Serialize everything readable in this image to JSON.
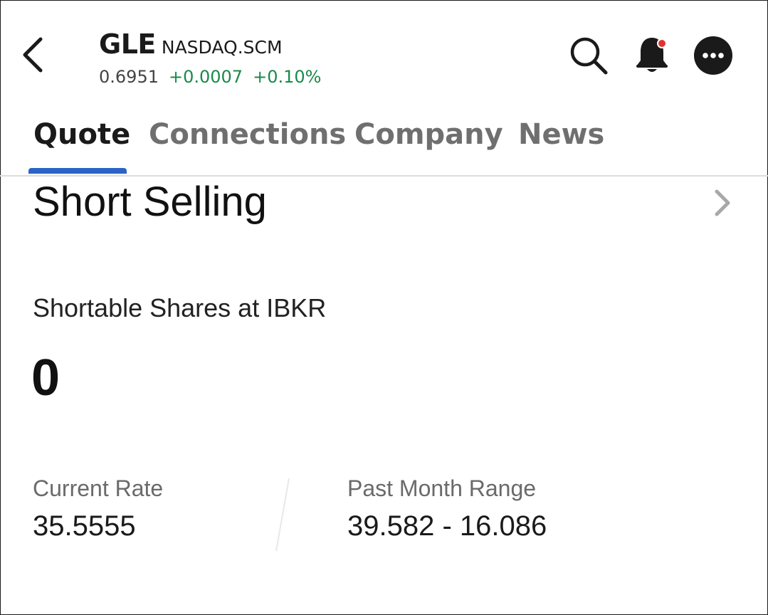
{
  "header": {
    "symbol": "GLE",
    "exchange": "NASDAQ.SCM",
    "last_price": "0.6951",
    "change": "+0.0007",
    "change_pct": "+0.10%",
    "positive_color": "#1a8a4a",
    "icons": {
      "back": "chevron-left-icon",
      "search": "search-icon",
      "alerts": "bell-icon",
      "more": "more-icon"
    },
    "notification_dot_color": "#e0332f"
  },
  "tabs": [
    {
      "label": "Quote",
      "active": true
    },
    {
      "label": "Connections",
      "active": false
    },
    {
      "label": "Company",
      "active": false
    },
    {
      "label": "News",
      "active": false
    }
  ],
  "accent_color": "#2b63c6",
  "short_selling": {
    "title": "Short Selling",
    "shortable_label": "Shortable Shares at IBKR",
    "shortable_value": "0",
    "current_rate_label": "Current Rate",
    "current_rate_value": "35.5555",
    "range_label": "Past Month Range",
    "range_value": "39.582 - 16.086"
  }
}
